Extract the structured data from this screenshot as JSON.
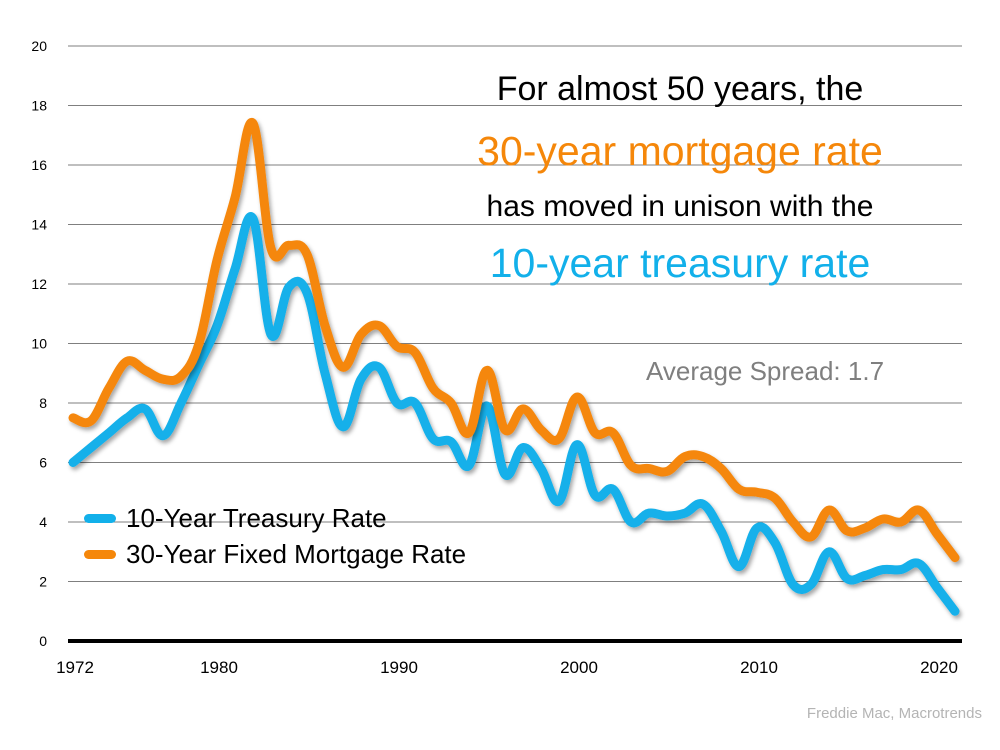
{
  "headline": {
    "line1": "For almost 50 years, the",
    "line2": "30-year mortgage rate",
    "line3": "has moved in unison with the",
    "line4": "10-year treasury rate"
  },
  "annotation": "Average Spread: 1.7",
  "source": "Freddie Mac, Macrotrends",
  "colors": {
    "treasury": "#12b0ea",
    "mortgage": "#f5870a",
    "grid": "#7f7f7f",
    "axis": "#000000",
    "annotation": "#7f7f7f"
  },
  "chart_data": {
    "type": "line",
    "title": "",
    "xlabel": "",
    "ylabel": "",
    "xlim": [
      1972,
      2021
    ],
    "ylim": [
      0,
      20
    ],
    "grid": true,
    "legend_position": "bottom-left",
    "y_ticks": [
      "0",
      "2",
      "4",
      "6",
      "8",
      "10",
      "12",
      "14",
      "16",
      "18",
      "20"
    ],
    "x_ticks": [
      "1972",
      "1980",
      "1990",
      "2000",
      "2010",
      "2020"
    ],
    "x": [
      1972,
      1973,
      1974,
      1975,
      1976,
      1977,
      1978,
      1979,
      1980,
      1981,
      1982,
      1983,
      1984,
      1985,
      1986,
      1987,
      1988,
      1989,
      1990,
      1991,
      1992,
      1993,
      1994,
      1995,
      1996,
      1997,
      1998,
      1999,
      2000,
      2001,
      2002,
      2003,
      2004,
      2005,
      2006,
      2007,
      2008,
      2009,
      2010,
      2011,
      2012,
      2013,
      2014,
      2015,
      2016,
      2017,
      2018,
      2019,
      2020,
      2021
    ],
    "series": [
      {
        "name": "10-Year Treasury Rate",
        "values": [
          6.0,
          6.5,
          7.0,
          7.5,
          7.8,
          6.9,
          8.0,
          9.3,
          10.6,
          12.5,
          14.2,
          10.3,
          11.9,
          11.7,
          9.0,
          7.2,
          8.8,
          9.2,
          8.0,
          8.0,
          6.8,
          6.7,
          5.9,
          7.9,
          5.6,
          6.5,
          5.8,
          4.7,
          6.6,
          4.9,
          5.1,
          4.0,
          4.3,
          4.2,
          4.3,
          4.6,
          3.7,
          2.5,
          3.8,
          3.3,
          1.9,
          1.9,
          3.0,
          2.1,
          2.2,
          2.4,
          2.4,
          2.6,
          1.8,
          1.0
        ]
      },
      {
        "name": "30-Year Fixed Mortgage Rate",
        "values": [
          7.5,
          7.4,
          8.5,
          9.4,
          9.1,
          8.8,
          8.9,
          10.0,
          12.8,
          14.9,
          17.4,
          13.2,
          13.3,
          13.0,
          10.6,
          9.2,
          10.3,
          10.6,
          9.9,
          9.7,
          8.5,
          8.0,
          7.0,
          9.1,
          7.1,
          7.8,
          7.1,
          6.8,
          8.2,
          7.0,
          7.0,
          5.9,
          5.8,
          5.7,
          6.2,
          6.2,
          5.8,
          5.1,
          5.0,
          4.8,
          4.0,
          3.5,
          4.4,
          3.7,
          3.8,
          4.1,
          4.0,
          4.4,
          3.6,
          2.8
        ]
      }
    ]
  }
}
